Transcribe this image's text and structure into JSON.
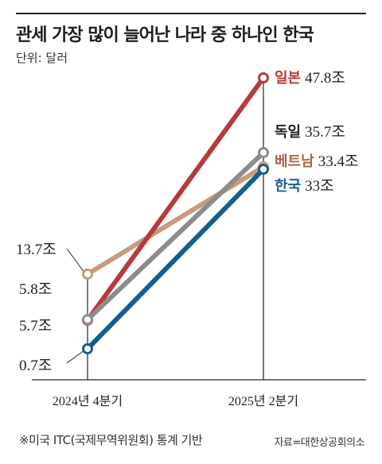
{
  "header": {
    "title": "관세 가장 많이 늘어난 나라 중 하나인 한국",
    "unit": "단위: 달러"
  },
  "footer": {
    "footnote": "※미국 ITC(국제무역위원회) 통계 기반",
    "source": "자료=대한상공회의소"
  },
  "chart_data": {
    "type": "line",
    "categories": [
      "2024년 4분기",
      "2025년 2분기"
    ],
    "value_unit": "조",
    "ylim": [
      0,
      50
    ],
    "grid": false,
    "series": [
      {
        "name": "일본",
        "values": [
          5.7,
          47.8
        ],
        "color": "#b73a3a",
        "start_label": "5.7조",
        "end_value_label": "47.8조"
      },
      {
        "name": "독일",
        "values": [
          5.8,
          35.7
        ],
        "color": "#8c8c8c",
        "start_label": "5.8조",
        "end_value_label": "35.7조"
      },
      {
        "name": "베트남",
        "values": [
          13.7,
          33.4
        ],
        "color": "#c99a7d",
        "start_label": "13.7조",
        "end_value_label": "33.4조"
      },
      {
        "name": "한국",
        "values": [
          0.7,
          33
        ],
        "color": "#135f8c",
        "start_label": "0.7조",
        "end_value_label": "33조"
      }
    ]
  },
  "colors": {
    "text": "#222222",
    "axis": "#222222",
    "japan_label": "#b73a3a",
    "vietnam_label": "#a8644a",
    "korea_label": "#135f8c",
    "germany_label": "#222222"
  }
}
